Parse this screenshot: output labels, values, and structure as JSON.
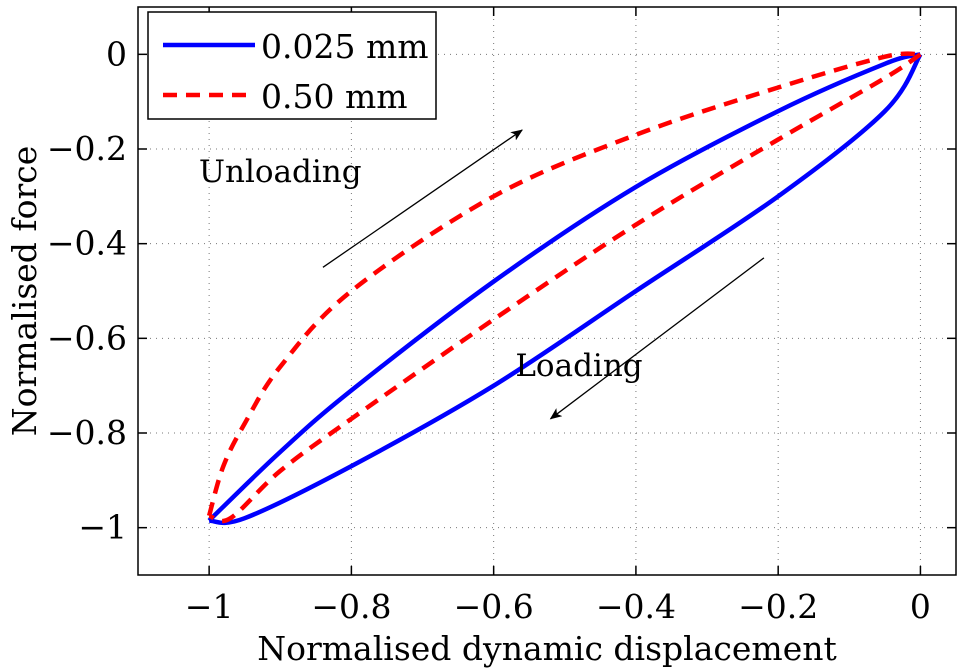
{
  "chart_data": {
    "type": "line",
    "xlabel": "Normalised dynamic displacement",
    "ylabel": "Normalised force",
    "xlim": [
      -1.1,
      0.05
    ],
    "ylim": [
      -1.1,
      0.1
    ],
    "xticks": [
      -1,
      -0.8,
      -0.6,
      -0.4,
      -0.2,
      0
    ],
    "xtick_labels": [
      "−1",
      "−0.8",
      "−0.6",
      "−0.4",
      "−0.2",
      "0"
    ],
    "yticks": [
      0,
      -0.2,
      -0.4,
      -0.6,
      -0.8,
      -1
    ],
    "ytick_labels": [
      "0",
      "−0.2",
      "−0.4",
      "−0.6",
      "−0.8",
      "−1"
    ],
    "grid": true,
    "legend_position": "top-left",
    "series": [
      {
        "name": "0.025 mm",
        "color": "#0000ff",
        "style": "solid",
        "upper_branch": [
          [
            -1.0,
            -0.985
          ],
          [
            -0.9,
            -0.84
          ],
          [
            -0.8,
            -0.71
          ],
          [
            -0.6,
            -0.48
          ],
          [
            -0.4,
            -0.28
          ],
          [
            -0.2,
            -0.12
          ],
          [
            -0.05,
            -0.02
          ],
          [
            0.0,
            0.0
          ]
        ],
        "lower_branch": [
          [
            0.0,
            0.0
          ],
          [
            -0.05,
            -0.12
          ],
          [
            -0.2,
            -0.3
          ],
          [
            -0.4,
            -0.5
          ],
          [
            -0.6,
            -0.7
          ],
          [
            -0.8,
            -0.87
          ],
          [
            -0.95,
            -0.98
          ],
          [
            -1.0,
            -0.985
          ]
        ]
      },
      {
        "name": "0.50 mm",
        "color": "#ff0000",
        "style": "dashed",
        "upper_branch": [
          [
            -1.0,
            -0.975
          ],
          [
            -0.98,
            -0.87
          ],
          [
            -0.95,
            -0.78
          ],
          [
            -0.9,
            -0.66
          ],
          [
            -0.8,
            -0.5
          ],
          [
            -0.6,
            -0.3
          ],
          [
            -0.4,
            -0.17
          ],
          [
            -0.2,
            -0.07
          ],
          [
            -0.05,
            -0.005
          ],
          [
            0.0,
            0.0
          ]
        ],
        "lower_branch": [
          [
            0.0,
            0.0
          ],
          [
            -0.05,
            -0.05
          ],
          [
            -0.2,
            -0.18
          ],
          [
            -0.4,
            -0.36
          ],
          [
            -0.6,
            -0.56
          ],
          [
            -0.8,
            -0.77
          ],
          [
            -0.9,
            -0.88
          ],
          [
            -0.97,
            -0.98
          ],
          [
            -1.0,
            -0.975
          ]
        ]
      }
    ],
    "annotations": [
      {
        "text": "Unloading",
        "x": -0.9,
        "y": -0.27
      },
      {
        "text": "Loading",
        "x": -0.48,
        "y": -0.68
      }
    ],
    "arrows": [
      {
        "label": "unloading-arrow",
        "from": [
          -0.84,
          -0.45
        ],
        "to": [
          -0.56,
          -0.16
        ]
      },
      {
        "label": "loading-arrow",
        "from": [
          -0.22,
          -0.43
        ],
        "to": [
          -0.52,
          -0.77
        ]
      }
    ]
  }
}
